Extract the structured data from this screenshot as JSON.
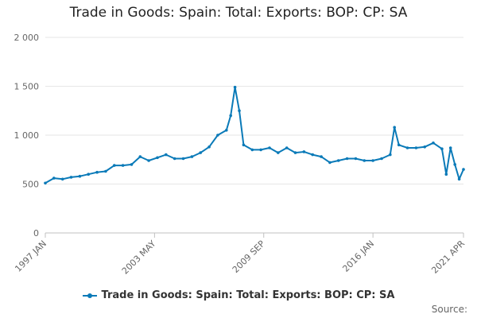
{
  "chart_data": {
    "type": "line",
    "title": "Trade in Goods: Spain: Total: Exports: BOP: CP: SA",
    "xlabel": "",
    "ylabel": "",
    "ylim": [
      0,
      2000
    ],
    "yticks": [
      0,
      500,
      1000,
      1500,
      2000
    ],
    "ytick_labels": [
      "0",
      "500",
      "1 000",
      "1 500",
      "2 000"
    ],
    "xticks": [
      "1997 JAN",
      "2003 MAY",
      "2009 SEP",
      "2016 JAN",
      "2021 APR"
    ],
    "grid": true,
    "legend": "bottom-center",
    "color": "#0a7ab8",
    "series": [
      {
        "name": "Trade in Goods: Spain: Total: Exports: BOP: CP: SA",
        "points": [
          [
            "1997-01",
            510
          ],
          [
            "1997-07",
            560
          ],
          [
            "1998-01",
            550
          ],
          [
            "1998-07",
            570
          ],
          [
            "1999-01",
            580
          ],
          [
            "1999-07",
            600
          ],
          [
            "2000-01",
            620
          ],
          [
            "2000-07",
            630
          ],
          [
            "2001-01",
            690
          ],
          [
            "2001-07",
            690
          ],
          [
            "2002-01",
            700
          ],
          [
            "2002-07",
            780
          ],
          [
            "2003-01",
            740
          ],
          [
            "2003-07",
            770
          ],
          [
            "2004-01",
            800
          ],
          [
            "2004-07",
            760
          ],
          [
            "2005-01",
            760
          ],
          [
            "2005-07",
            780
          ],
          [
            "2006-01",
            820
          ],
          [
            "2006-07",
            880
          ],
          [
            "2007-01",
            1000
          ],
          [
            "2007-07",
            1050
          ],
          [
            "2007-10",
            1200
          ],
          [
            "2008-01",
            1490
          ],
          [
            "2008-04",
            1250
          ],
          [
            "2008-07",
            900
          ],
          [
            "2009-01",
            850
          ],
          [
            "2009-07",
            850
          ],
          [
            "2010-01",
            870
          ],
          [
            "2010-07",
            820
          ],
          [
            "2011-01",
            870
          ],
          [
            "2011-07",
            820
          ],
          [
            "2012-01",
            830
          ],
          [
            "2012-07",
            800
          ],
          [
            "2013-01",
            780
          ],
          [
            "2013-07",
            720
          ],
          [
            "2014-01",
            740
          ],
          [
            "2014-07",
            760
          ],
          [
            "2015-01",
            760
          ],
          [
            "2015-07",
            740
          ],
          [
            "2016-01",
            740
          ],
          [
            "2016-07",
            760
          ],
          [
            "2017-01",
            800
          ],
          [
            "2017-04",
            1080
          ],
          [
            "2017-07",
            900
          ],
          [
            "2018-01",
            870
          ],
          [
            "2018-07",
            870
          ],
          [
            "2019-01",
            880
          ],
          [
            "2019-07",
            920
          ],
          [
            "2020-01",
            860
          ],
          [
            "2020-04",
            600
          ],
          [
            "2020-07",
            870
          ],
          [
            "2020-10",
            700
          ],
          [
            "2021-01",
            550
          ],
          [
            "2021-04",
            650
          ]
        ]
      }
    ],
    "source_label": "Source:"
  }
}
